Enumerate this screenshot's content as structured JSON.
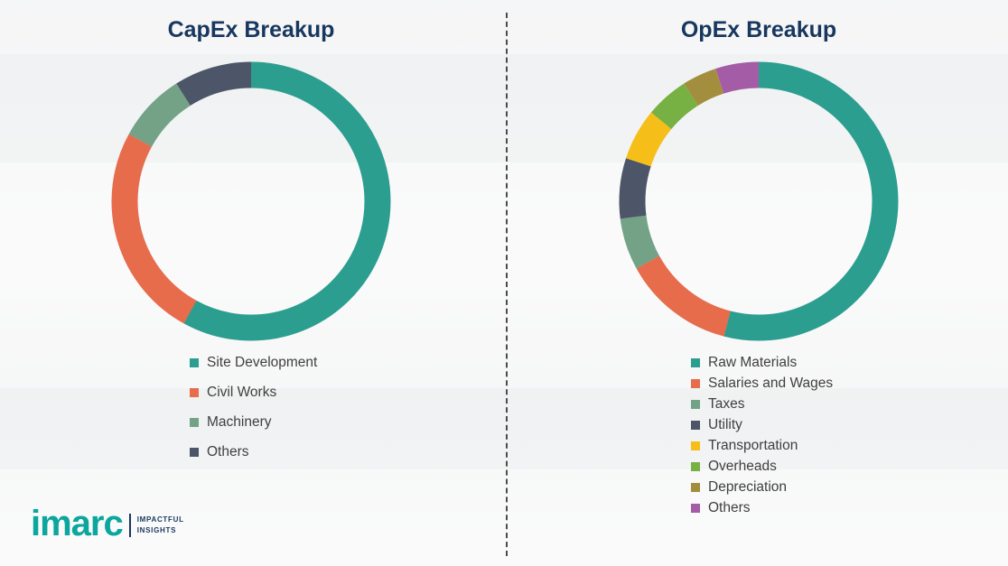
{
  "page": {
    "divider_style": "vertical-dashed",
    "background": "#fdfdfd"
  },
  "title_color": "#17375E",
  "legend_text_color": "#3f3f3f",
  "chart_data": [
    {
      "type": "pie",
      "donut": true,
      "title": "CapEx Breakup",
      "legend_position": "bottom",
      "segments": [
        {
          "label": "Site Development",
          "value": 58,
          "color": "#2B9E8F"
        },
        {
          "label": "Civil Works",
          "value": 25,
          "color": "#E66C4C"
        },
        {
          "label": "Machinery",
          "value": 8,
          "color": "#73A287"
        },
        {
          "label": "Others",
          "value": 9,
          "color": "#4C5668"
        }
      ]
    },
    {
      "type": "pie",
      "donut": true,
      "title": "OpEx Breakup",
      "legend_position": "bottom",
      "segments": [
        {
          "label": "Raw Materials",
          "value": 54,
          "color": "#2B9E8F"
        },
        {
          "label": "Salaries and Wages",
          "value": 13,
          "color": "#E66C4C"
        },
        {
          "label": "Taxes",
          "value": 6,
          "color": "#73A287"
        },
        {
          "label": "Utility",
          "value": 7,
          "color": "#4C5668"
        },
        {
          "label": "Transportation",
          "value": 6,
          "color": "#F6BE19"
        },
        {
          "label": "Overheads",
          "value": 5,
          "color": "#77B043"
        },
        {
          "label": "Depreciation",
          "value": 4,
          "color": "#A28E3C"
        },
        {
          "label": "Others",
          "value": 5,
          "color": "#A35CA5"
        }
      ]
    }
  ],
  "logo": {
    "brand": "imarc",
    "tagline_line1": "IMPACTFUL",
    "tagline_line2": "INSIGHTS",
    "brand_color": "#0BA69D",
    "tagline_color": "#17375E"
  }
}
